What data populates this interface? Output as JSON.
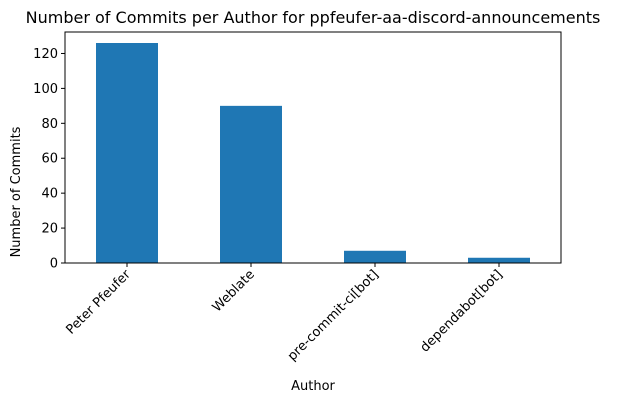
{
  "chart_data": {
    "type": "bar",
    "title": "Number of Commits per Author for ppfeufer-aa-discord-announcements",
    "xlabel": "Author",
    "ylabel": "Number of Commits",
    "categories": [
      "Peter Pfeufer",
      "Weblate",
      "pre-commit-ci[bot]",
      "dependabot[bot]"
    ],
    "values": [
      126,
      90,
      7,
      3
    ],
    "ylim": [
      0,
      132.3
    ],
    "yticks": [
      0,
      20,
      40,
      60,
      80,
      100,
      120
    ],
    "grid": false,
    "legend": "none",
    "bar_color": "#1f77b4"
  }
}
